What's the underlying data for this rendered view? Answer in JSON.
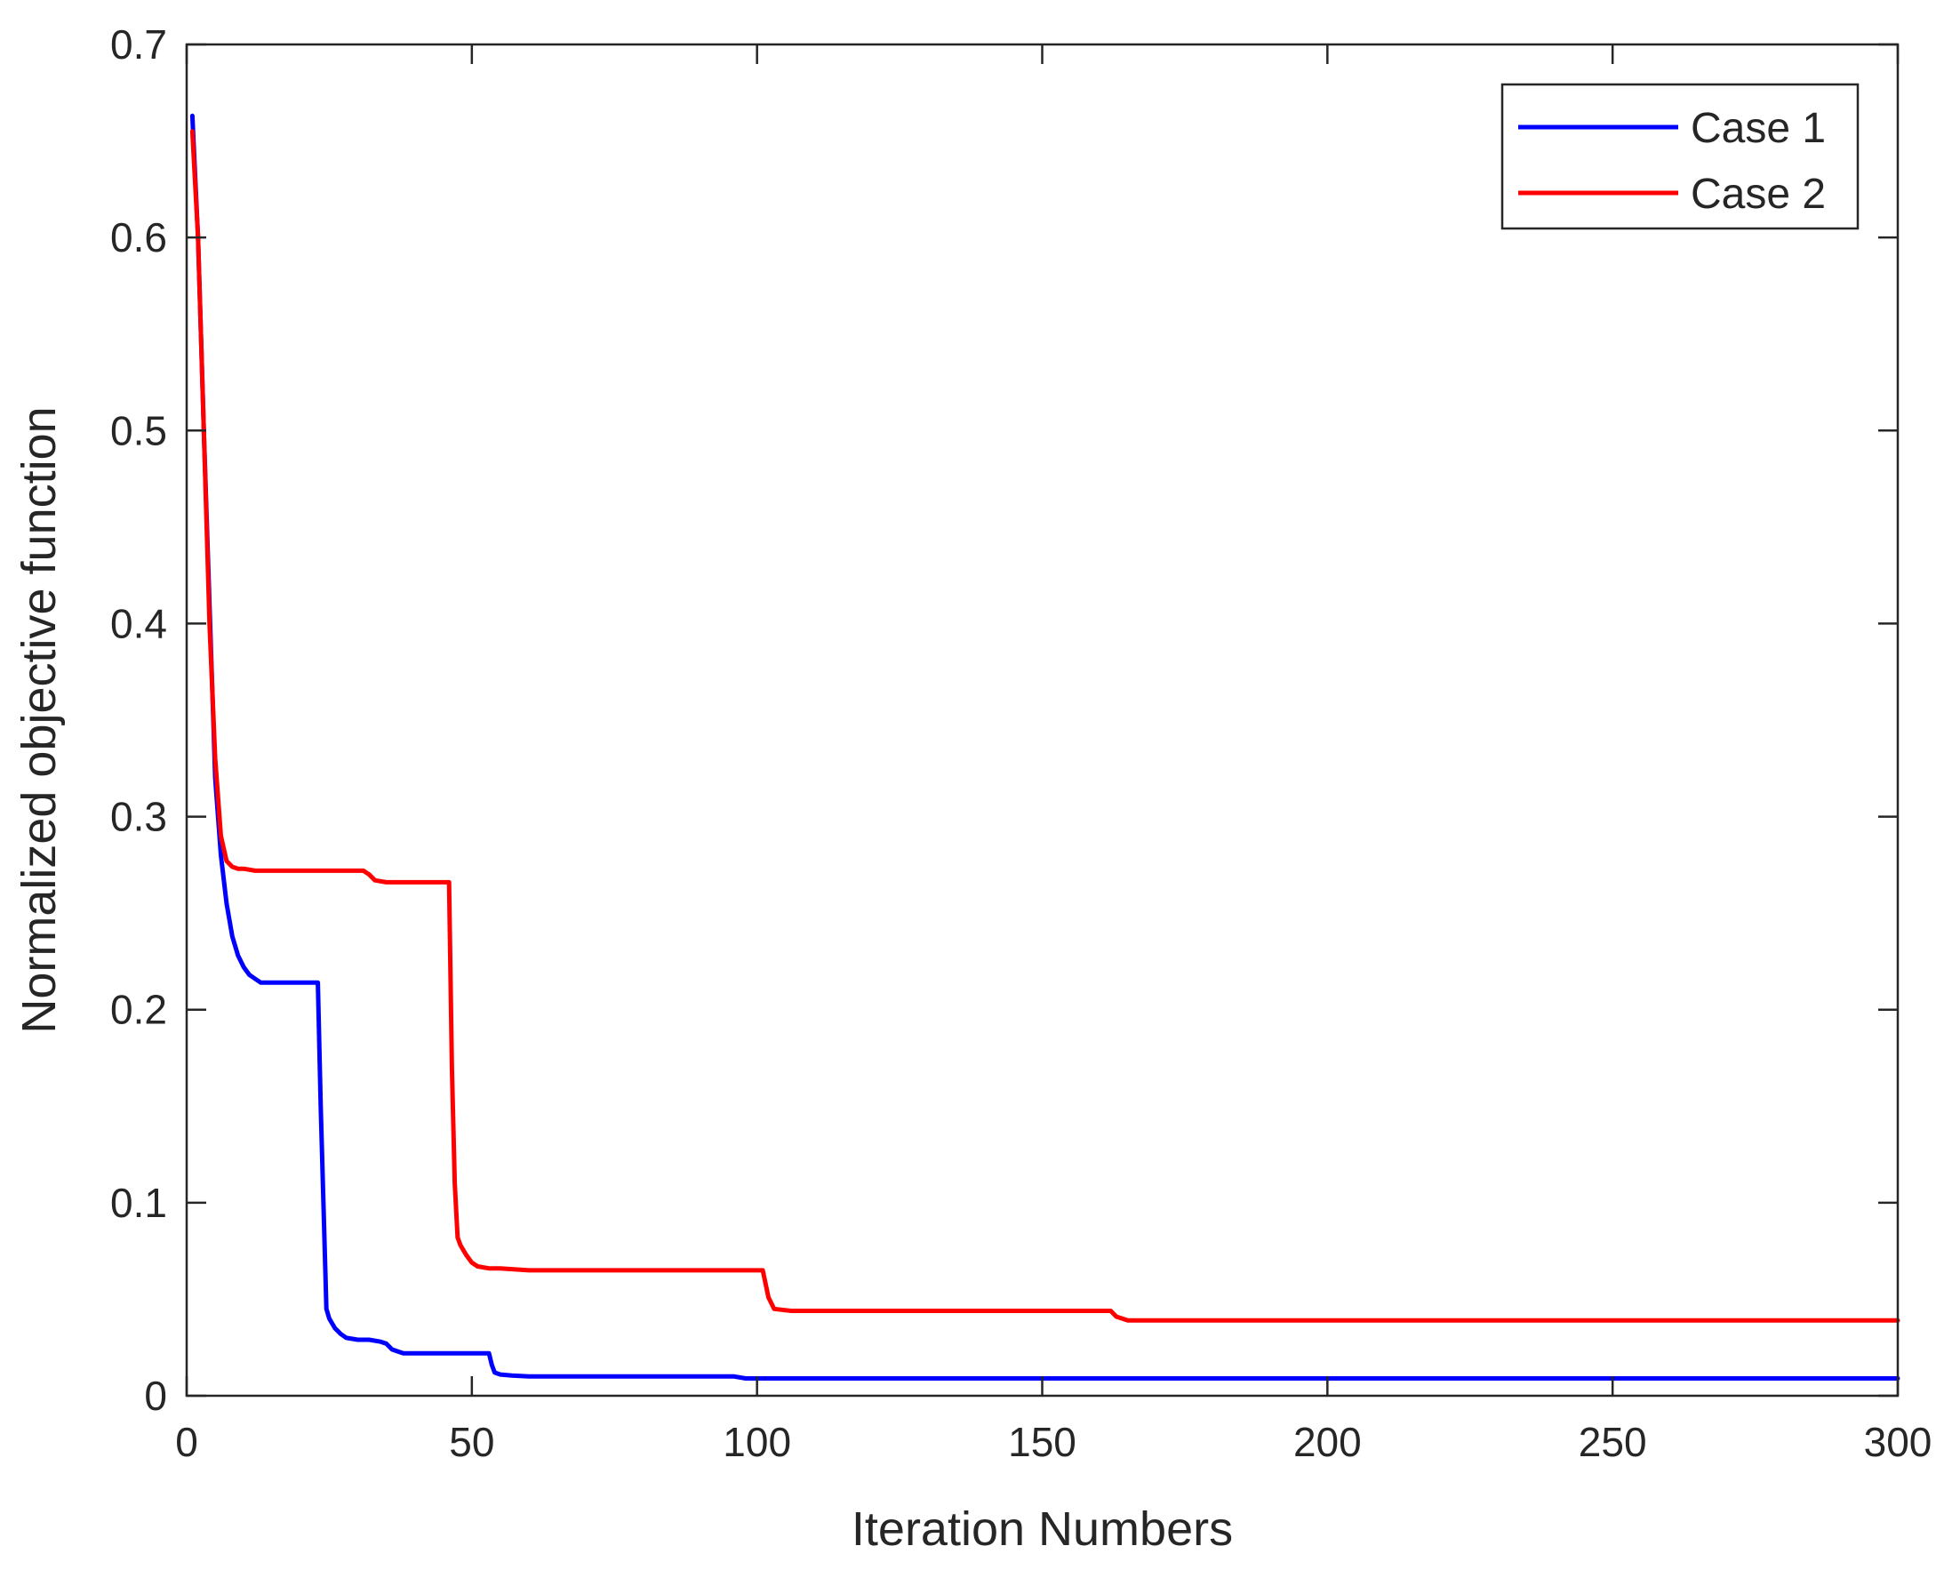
{
  "chart_data": {
    "type": "line",
    "title": "",
    "xlabel": "Iteration Numbers",
    "ylabel": "Normalized objective function",
    "xlim": [
      0,
      300
    ],
    "ylim": [
      0,
      0.7
    ],
    "xticks": [
      0,
      50,
      100,
      150,
      200,
      250,
      300
    ],
    "xtick_labels": [
      "0",
      "50",
      "100",
      "150",
      "200",
      "250",
      "300"
    ],
    "yticks": [
      0,
      0.1,
      0.2,
      0.3,
      0.4,
      0.5,
      0.6,
      0.7
    ],
    "ytick_labels": [
      "0",
      "0.1",
      "0.2",
      "0.3",
      "0.4",
      "0.5",
      "0.6",
      "0.7"
    ],
    "grid": false,
    "box": true,
    "legend_position": "top-right",
    "series": [
      {
        "name": "Case 1",
        "color": "#0000ff",
        "x": [
          1,
          2,
          3,
          4,
          5,
          6,
          7,
          8,
          9,
          10,
          11,
          12,
          13,
          15,
          20,
          23,
          23.5,
          24.5,
          25,
          26,
          27,
          28,
          30,
          32,
          34,
          35,
          36,
          37,
          38,
          40,
          45,
          50,
          53,
          53.5,
          54,
          55,
          57,
          60,
          70,
          80,
          90,
          96,
          98,
          100,
          150,
          200,
          250,
          300
        ],
        "y": [
          0.663,
          0.6,
          0.5,
          0.41,
          0.32,
          0.28,
          0.255,
          0.238,
          0.228,
          0.222,
          0.218,
          0.216,
          0.214,
          0.214,
          0.214,
          0.214,
          0.15,
          0.045,
          0.04,
          0.035,
          0.032,
          0.03,
          0.029,
          0.029,
          0.028,
          0.027,
          0.024,
          0.023,
          0.022,
          0.022,
          0.022,
          0.022,
          0.022,
          0.016,
          0.012,
          0.011,
          0.0105,
          0.01,
          0.01,
          0.01,
          0.01,
          0.01,
          0.009,
          0.009,
          0.009,
          0.009,
          0.009,
          0.009
        ]
      },
      {
        "name": "Case 2",
        "color": "#ff0000",
        "x": [
          1,
          2,
          3,
          4,
          5,
          6,
          7,
          8,
          9,
          10,
          12,
          15,
          20,
          25,
          31,
          32,
          33,
          35,
          40,
          46,
          46.5,
          47,
          47.5,
          48,
          49,
          50,
          51,
          53,
          55,
          60,
          80,
          101,
          102,
          103,
          106,
          110,
          130,
          150,
          162,
          163,
          165,
          180,
          200,
          214,
          250,
          300
        ],
        "y": [
          0.655,
          0.6,
          0.5,
          0.4,
          0.33,
          0.29,
          0.277,
          0.274,
          0.273,
          0.273,
          0.272,
          0.272,
          0.272,
          0.272,
          0.272,
          0.27,
          0.267,
          0.266,
          0.266,
          0.266,
          0.17,
          0.11,
          0.082,
          0.078,
          0.073,
          0.069,
          0.067,
          0.066,
          0.066,
          0.065,
          0.065,
          0.065,
          0.051,
          0.045,
          0.044,
          0.044,
          0.044,
          0.044,
          0.044,
          0.041,
          0.039,
          0.039,
          0.039,
          0.039,
          0.039,
          0.039
        ]
      }
    ]
  }
}
